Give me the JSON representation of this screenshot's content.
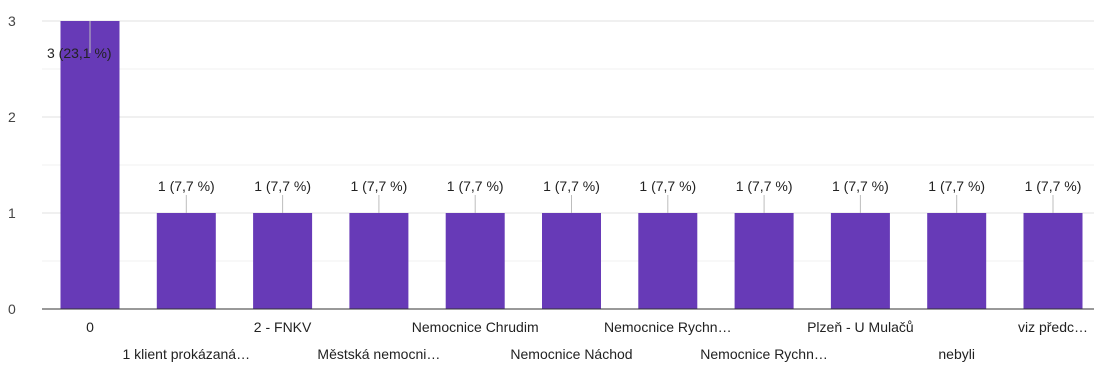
{
  "chart_data": {
    "type": "bar",
    "categories": [
      "0",
      "1 klient prokázaná…",
      "2 - FNKV",
      "Městská nemocni…",
      "Nemocnice Chrudim",
      "Nemocnice Náchod",
      "Nemocnice Rychn…",
      "Nemocnice Rychn…",
      "Plzeň - U Mulačů",
      "nebyli",
      "viz předc…"
    ],
    "values": [
      3,
      1,
      1,
      1,
      1,
      1,
      1,
      1,
      1,
      1,
      1
    ],
    "data_labels": [
      "3 (23,1 %)",
      "1 (7,7 %)",
      "1 (7,7 %)",
      "1 (7,7 %)",
      "1 (7,7 %)",
      "1 (7,7 %)",
      "1 (7,7 %)",
      "1 (7,7 %)",
      "1 (7,7 %)",
      "1 (7,7 %)",
      "1 (7,7 %)"
    ],
    "y_ticks": [
      "0",
      "1",
      "2",
      "3"
    ],
    "ylim": [
      0,
      3
    ],
    "grid": true,
    "bar_color": "#673ab7",
    "title": "",
    "xlabel": "",
    "ylabel": ""
  }
}
